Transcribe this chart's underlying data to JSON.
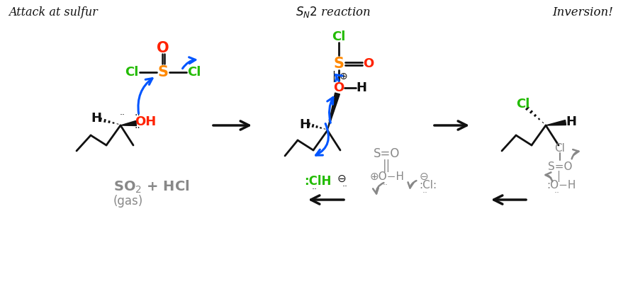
{
  "bg": "#ffffff",
  "cCl": "#22bb00",
  "cS": "#ff8800",
  "cO": "#ff2200",
  "cBk": "#111111",
  "cGy": "#888888",
  "cBl": "#0055ff",
  "label_attack": "Attack at sulfur",
  "label_sn2": "$\\mathit{S}_{\\mathit{N}}\\mathit{2}$ reaction",
  "label_inversion": "Inversion!",
  "label_so2": "SO$_2$ + HCl",
  "label_gas": "(gas)"
}
